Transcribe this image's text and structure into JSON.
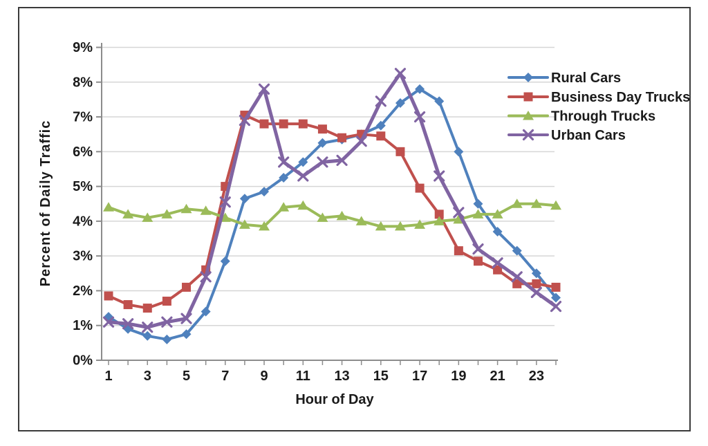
{
  "figure": {
    "background": "#FFFFFF",
    "border_color": "#3A3A3A"
  },
  "chart_data": {
    "type": "line",
    "title": "",
    "xlabel": "Hour of Day",
    "ylabel": "Percent of Daily Traffic",
    "hours": [
      1,
      2,
      3,
      4,
      5,
      6,
      7,
      8,
      9,
      10,
      11,
      12,
      13,
      14,
      15,
      16,
      17,
      18,
      19,
      20,
      21,
      22,
      23,
      24
    ],
    "ylim": [
      0,
      9
    ],
    "grid": "horizontal",
    "grid_color": "#D6D6D6",
    "axis_color": "#8C8C8C",
    "text_color": "#1A1A1A",
    "legend_position": "upper-right",
    "y_ticks": [
      {
        "value": 0,
        "label": "0%"
      },
      {
        "value": 1,
        "label": "1%"
      },
      {
        "value": 2,
        "label": "2%"
      },
      {
        "value": 3,
        "label": "3%"
      },
      {
        "value": 4,
        "label": "4%"
      },
      {
        "value": 5,
        "label": "5%"
      },
      {
        "value": 6,
        "label": "6%"
      },
      {
        "value": 7,
        "label": "7%"
      },
      {
        "value": 8,
        "label": "8%"
      },
      {
        "value": 9,
        "label": "9%"
      }
    ],
    "x_ticks": [
      {
        "value": 1,
        "label": "1"
      },
      {
        "value": 3,
        "label": "3"
      },
      {
        "value": 5,
        "label": "5"
      },
      {
        "value": 7,
        "label": "7"
      },
      {
        "value": 9,
        "label": "9"
      },
      {
        "value": 11,
        "label": "11"
      },
      {
        "value": 13,
        "label": "13"
      },
      {
        "value": 15,
        "label": "15"
      },
      {
        "value": 17,
        "label": "17"
      },
      {
        "value": 19,
        "label": "19"
      },
      {
        "value": 21,
        "label": "21"
      },
      {
        "value": 23,
        "label": "23"
      }
    ],
    "series": [
      {
        "name": "Rural Cars",
        "color": "#4F81BD",
        "marker": "diamond",
        "values": [
          1.25,
          0.9,
          0.7,
          0.6,
          0.75,
          1.4,
          2.85,
          4.65,
          4.85,
          5.25,
          5.7,
          6.25,
          6.35,
          6.5,
          6.75,
          7.4,
          7.8,
          7.45,
          6.0,
          4.5,
          3.7,
          3.15,
          2.5,
          1.8
        ]
      },
      {
        "name": "Business Day Trucks",
        "color": "#C0504D",
        "marker": "square",
        "values": [
          1.85,
          1.6,
          1.5,
          1.7,
          2.1,
          2.6,
          5.0,
          7.05,
          6.8,
          6.8,
          6.8,
          6.65,
          6.4,
          6.5,
          6.45,
          6.0,
          4.95,
          4.2,
          3.15,
          2.85,
          2.6,
          2.2,
          2.2,
          2.1
        ]
      },
      {
        "name": "Through Trucks",
        "color": "#9BBB59",
        "marker": "triangle",
        "values": [
          4.4,
          4.2,
          4.1,
          4.2,
          4.35,
          4.3,
          4.1,
          3.9,
          3.85,
          4.4,
          4.45,
          4.1,
          4.15,
          4.0,
          3.85,
          3.85,
          3.9,
          4.0,
          4.05,
          4.2,
          4.2,
          4.5,
          4.5,
          4.45
        ]
      },
      {
        "name": "Urban Cars",
        "color": "#8064A2",
        "marker": "x",
        "values": [
          1.1,
          1.05,
          0.95,
          1.1,
          1.2,
          2.4,
          4.55,
          6.9,
          7.8,
          5.7,
          5.3,
          5.7,
          5.75,
          6.3,
          7.45,
          8.25,
          7.0,
          5.3,
          4.25,
          3.2,
          2.8,
          2.4,
          1.95,
          1.55
        ]
      }
    ]
  }
}
